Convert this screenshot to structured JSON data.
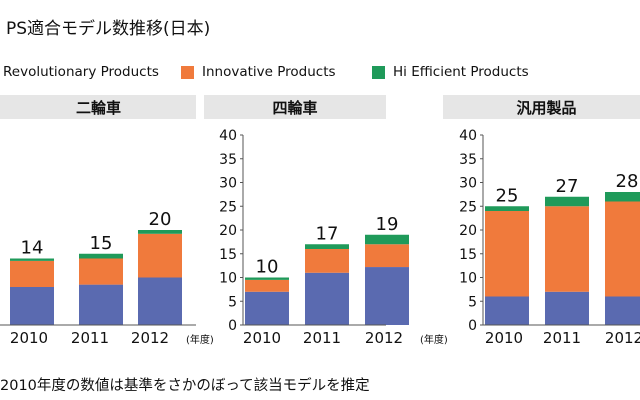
{
  "title": "PS適合モデル数推移(日本)",
  "colors": {
    "revolutionary": "#5a6ab0",
    "innovative": "#f07a3c",
    "hi_efficient": "#1f9a5a",
    "header_bg": "#e6e6e6"
  },
  "legend": [
    {
      "label": "Revolutionary Products",
      "color": "#5a6ab0"
    },
    {
      "label": "Innovative Products",
      "color": "#f07a3c"
    },
    {
      "label": "Hi Efficient Products",
      "color": "#1f9a5a"
    }
  ],
  "chart_data": [
    {
      "type": "bar",
      "title": "二輪車",
      "categories": [
        "2010",
        "2011",
        "2012"
      ],
      "x_unit_label": "(年度)",
      "ylim": [
        0,
        40
      ],
      "series": [
        {
          "name": "Revolutionary Products",
          "values": [
            8,
            8.5,
            10
          ]
        },
        {
          "name": "Innovative Products",
          "values": [
            5.5,
            5.5,
            9.2
          ]
        },
        {
          "name": "Hi Efficient Products",
          "values": [
            0.5,
            1,
            0.8
          ]
        }
      ],
      "totals": [
        "14",
        "15",
        "20"
      ]
    },
    {
      "type": "bar",
      "title": "四輪車",
      "categories": [
        "2010",
        "2011",
        "2012"
      ],
      "x_unit_label": "(年度)",
      "ylim": [
        0,
        40
      ],
      "yticks": [
        0,
        5,
        10,
        15,
        20,
        25,
        30,
        35,
        40
      ],
      "series": [
        {
          "name": "Revolutionary Products",
          "values": [
            7,
            11,
            12.2
          ]
        },
        {
          "name": "Innovative Products",
          "values": [
            2.5,
            5,
            4.8
          ]
        },
        {
          "name": "Hi Efficient Products",
          "values": [
            0.5,
            1,
            2
          ]
        }
      ],
      "totals": [
        "10",
        "17",
        "19"
      ]
    },
    {
      "type": "bar",
      "title": "汎用製品",
      "categories": [
        "2010",
        "2011",
        "2012"
      ],
      "ylim": [
        0,
        40
      ],
      "yticks": [
        0,
        5,
        10,
        15,
        20,
        25,
        30,
        35,
        40
      ],
      "series": [
        {
          "name": "Revolutionary Products",
          "values": [
            6,
            7,
            6
          ]
        },
        {
          "name": "Innovative Products",
          "values": [
            18,
            18,
            20
          ]
        },
        {
          "name": "Hi Efficient Products",
          "values": [
            1,
            2,
            2
          ]
        }
      ],
      "totals": [
        "25",
        "27",
        "28"
      ]
    }
  ],
  "note": "2010年度の数値は基準をさかのぼって該当モデルを推定"
}
